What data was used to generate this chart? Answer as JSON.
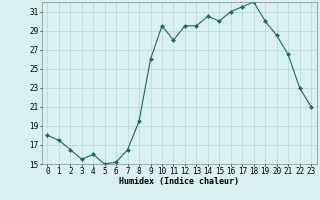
{
  "x": [
    0,
    1,
    2,
    3,
    4,
    5,
    6,
    7,
    8,
    9,
    10,
    11,
    12,
    13,
    14,
    15,
    16,
    17,
    18,
    19,
    20,
    21,
    22,
    23
  ],
  "y": [
    18.0,
    17.5,
    16.5,
    15.5,
    16.0,
    15.0,
    15.2,
    16.5,
    19.5,
    26.0,
    29.5,
    28.0,
    29.5,
    29.5,
    30.5,
    30.0,
    31.0,
    31.5,
    32.0,
    30.0,
    28.5,
    26.5,
    23.0,
    21.0
  ],
  "line_color": "#1a6b5a",
  "marker": "D",
  "marker_size": 2.0,
  "bg_color": "#d9f0f0",
  "grid_color": "#b8d4d0",
  "xlabel": "Humidex (Indice chaleur)",
  "ylim": [
    15,
    32
  ],
  "xlim": [
    -0.5,
    23.5
  ],
  "yticks": [
    15,
    17,
    19,
    21,
    23,
    25,
    27,
    29,
    31
  ],
  "xticks": [
    0,
    1,
    2,
    3,
    4,
    5,
    6,
    7,
    8,
    9,
    10,
    11,
    12,
    13,
    14,
    15,
    16,
    17,
    18,
    19,
    20,
    21,
    22,
    23
  ],
  "label_fontsize": 6.0,
  "tick_fontsize": 5.5
}
